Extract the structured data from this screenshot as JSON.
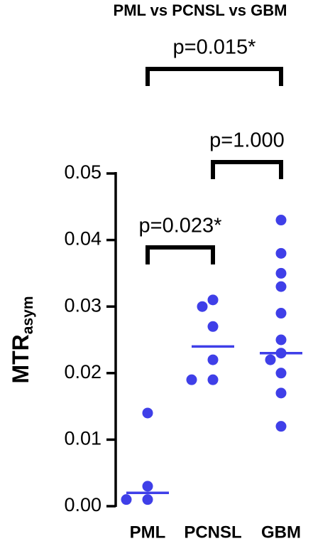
{
  "chart_data": {
    "type": "dot",
    "title": "PML vs PCNSL vs GBM",
    "y_label": "MTR",
    "y_label_subscript": "asym",
    "categories": [
      "PML",
      "PCNSL",
      "GBM"
    ],
    "values": [
      [
        0.014,
        0.003,
        0.001,
        0.001
      ],
      [
        0.031,
        0.03,
        0.027,
        0.022,
        0.019,
        0.019
      ],
      [
        0.043,
        0.038,
        0.035,
        0.033,
        0.029,
        0.025,
        0.023,
        0.022,
        0.02,
        0.017,
        0.012
      ]
    ],
    "medians": [
      0.002,
      0.024,
      0.023
    ],
    "color": "#3f3fe8",
    "ylim": [
      0,
      0.05
    ],
    "yticks": [
      {
        "value": 0,
        "label": "0.00"
      },
      {
        "value": 0.01,
        "label": "0.01"
      },
      {
        "value": 0.02,
        "label": "0.02"
      },
      {
        "value": 0.03,
        "label": "0.03"
      },
      {
        "value": 0.04,
        "label": "0.04"
      },
      {
        "value": 0.05,
        "label": "0.05"
      }
    ],
    "annotations": [
      "p=0.023*",
      "p=1.000",
      "p=0.015*"
    ]
  }
}
